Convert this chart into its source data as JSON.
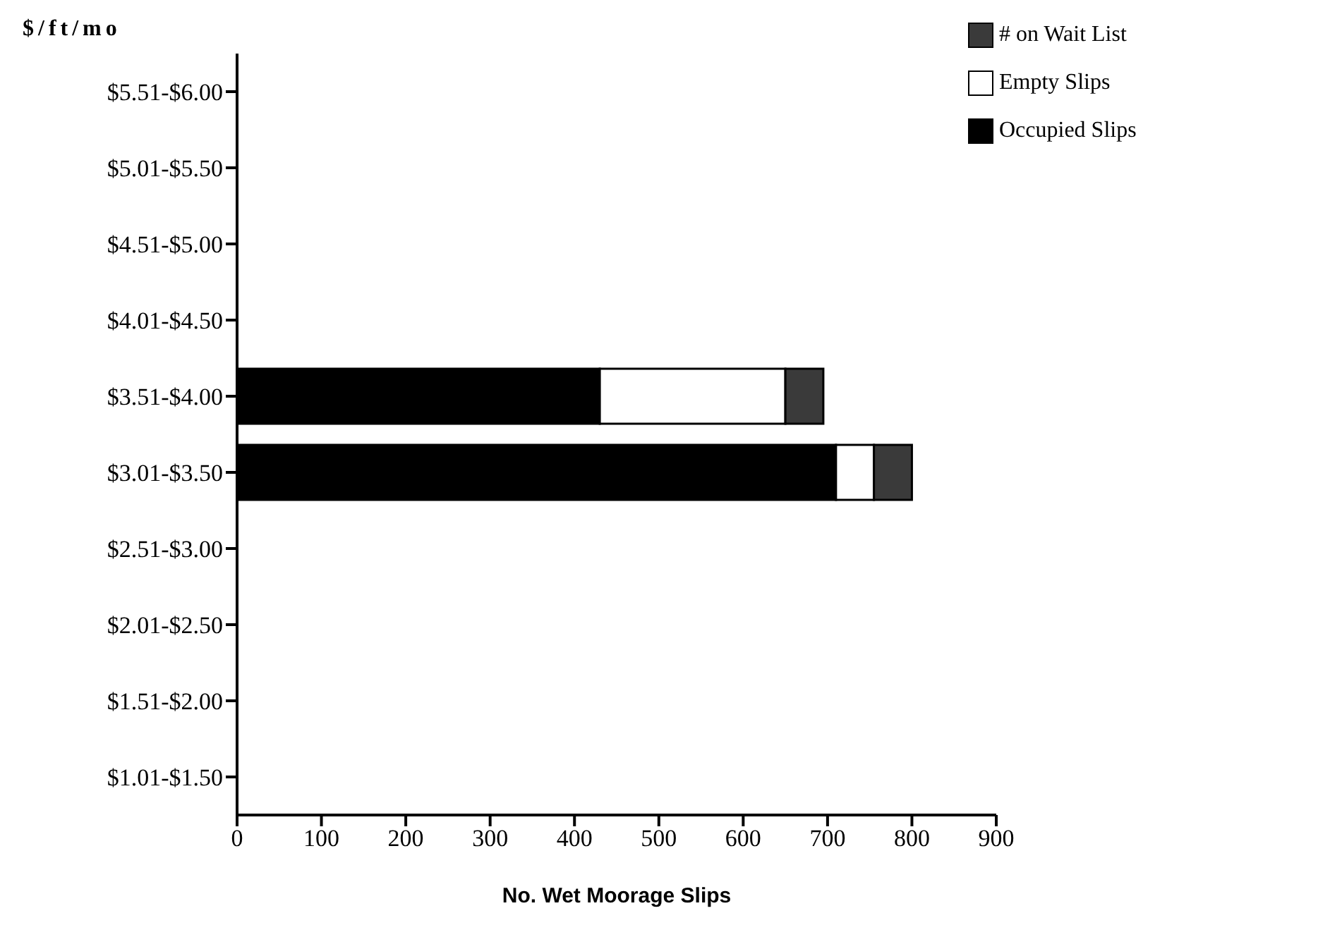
{
  "chart_data": {
    "type": "bar",
    "orientation": "horizontal",
    "stacked": true,
    "ylabel": "$/ft/mo",
    "xlabel": "No. Wet Moorage Slips",
    "categories": [
      "$5.51-$6.00",
      "$5.01-$5.50",
      "$4.51-$5.00",
      "$4.01-$4.50",
      "$3.51-$4.00",
      "$3.01-$3.50",
      "$2.51-$3.00",
      "$2.01-$2.50",
      "$1.51-$2.00",
      "$1.01-$1.50"
    ],
    "series": [
      {
        "name": "Occupied Slips",
        "color": "#000000",
        "values": [
          null,
          null,
          null,
          null,
          430,
          710,
          null,
          null,
          null,
          null
        ]
      },
      {
        "name": "Empty Slips",
        "color": "#ffffff",
        "values": [
          null,
          null,
          null,
          null,
          220,
          45,
          null,
          null,
          null,
          null
        ]
      },
      {
        "name": "# on Wait List",
        "color": "#3a3a3a",
        "values": [
          null,
          null,
          null,
          null,
          45,
          45,
          null,
          null,
          null,
          null
        ]
      }
    ],
    "xlim": [
      0,
      900
    ],
    "xticks": [
      0,
      100,
      200,
      300,
      400,
      500,
      600,
      700,
      800,
      900
    ],
    "legend": "top right"
  }
}
